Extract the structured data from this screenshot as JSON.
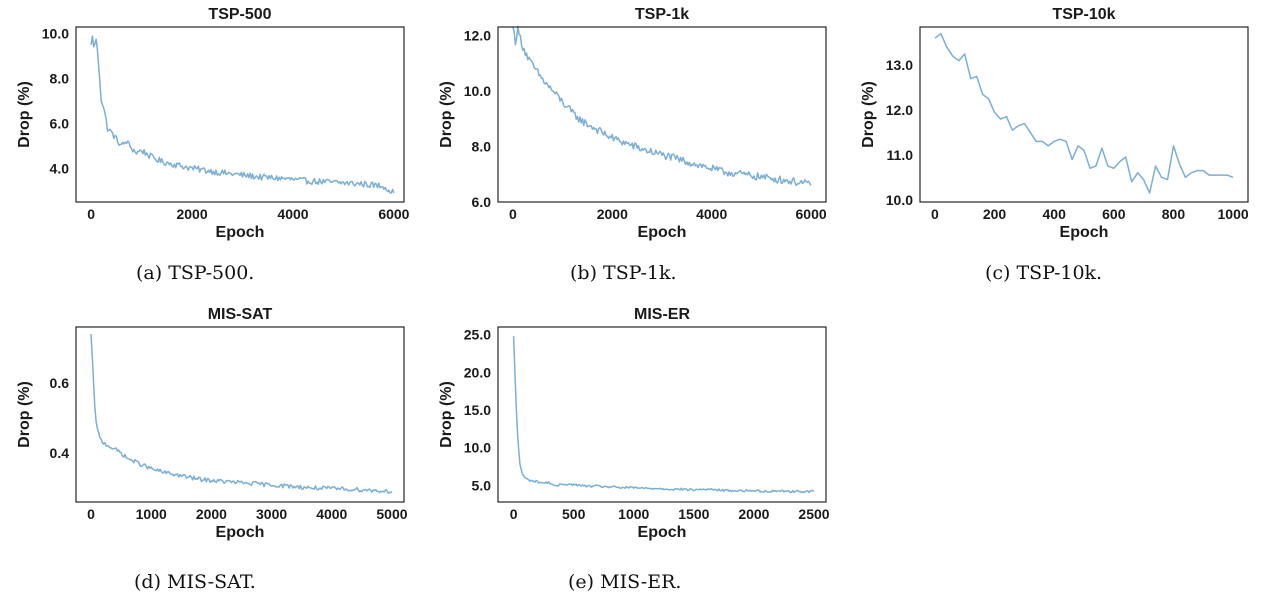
{
  "chart_data": [
    {
      "type": "line",
      "title": "TSP-500",
      "xlabel": "Epoch",
      "ylabel": "Drop (%)",
      "caption": "(a) TSP-500.",
      "xlim": [
        -300,
        6200
      ],
      "ylim": [
        2.5,
        10.3
      ],
      "xticks": [
        0,
        2000,
        4000,
        6000
      ],
      "xtick_labels": [
        "0",
        "2000",
        "4000",
        "6000"
      ],
      "yticks": [
        4.0,
        6.0,
        8.0,
        10.0
      ],
      "ytick_labels": [
        "4.0",
        "6.0",
        "8.0",
        "10.0"
      ],
      "color": "#7bafd4",
      "grid": false,
      "series": [
        {
          "x": [
            0,
            30,
            60,
            100,
            150,
            200,
            260,
            320,
            400,
            500,
            600,
            700,
            800,
            900,
            1000,
            1200,
            1400,
            1600,
            1800,
            2000,
            2300,
            2600,
            3000,
            3400,
            3800,
            4200,
            4600,
            5000,
            5400,
            5800,
            6000
          ],
          "y": [
            9.5,
            9.9,
            9.3,
            9.8,
            8.6,
            7.1,
            6.6,
            5.8,
            5.6,
            5.3,
            5.0,
            5.2,
            4.9,
            4.7,
            4.8,
            4.5,
            4.3,
            4.2,
            4.1,
            4.0,
            3.9,
            3.8,
            3.7,
            3.6,
            3.55,
            3.45,
            3.4,
            3.35,
            3.3,
            3.2,
            2.9
          ]
        }
      ]
    },
    {
      "type": "line",
      "title": "TSP-1k",
      "xlabel": "Epoch",
      "ylabel": "Drop (%)",
      "caption": "(b) TSP-1k.",
      "xlim": [
        -300,
        6300
      ],
      "ylim": [
        6.0,
        12.3
      ],
      "xticks": [
        0,
        2000,
        4000,
        6000
      ],
      "xtick_labels": [
        "0",
        "2000",
        "4000",
        "6000"
      ],
      "yticks": [
        6.0,
        8.0,
        10.0,
        12.0
      ],
      "ytick_labels": [
        "6.0",
        "8.0",
        "10.0",
        "12.0"
      ],
      "color": "#7bafd4",
      "grid": false,
      "series": [
        {
          "x": [
            0,
            50,
            100,
            200,
            300,
            400,
            600,
            800,
            1000,
            1200,
            1400,
            1600,
            1800,
            2000,
            2300,
            2600,
            3000,
            3400,
            3800,
            4200,
            4600,
            5000,
            5400,
            5800,
            6000
          ],
          "y": [
            12.3,
            11.8,
            12.2,
            11.6,
            11.2,
            10.9,
            10.4,
            10.0,
            9.6,
            9.2,
            8.9,
            8.7,
            8.5,
            8.3,
            8.1,
            7.9,
            7.7,
            7.5,
            7.3,
            7.1,
            7.0,
            6.9,
            6.8,
            6.7,
            6.6
          ]
        }
      ]
    },
    {
      "type": "line",
      "title": "TSP-10k",
      "xlabel": "Epoch",
      "ylabel": "Drop (%)",
      "caption": "(c) TSP-10k.",
      "xlim": [
        -50,
        1050
      ],
      "ylim": [
        9.95,
        13.85
      ],
      "xticks": [
        0,
        200,
        400,
        600,
        800,
        1000
      ],
      "xtick_labels": [
        "0",
        "200",
        "400",
        "600",
        "800",
        "1000"
      ],
      "yticks": [
        10.0,
        11.0,
        12.0,
        13.0
      ],
      "ytick_labels": [
        "10.0",
        "11.0",
        "12.0",
        "13.0"
      ],
      "color": "#7bafd4",
      "grid": false,
      "series": [
        {
          "x": [
            0,
            20,
            40,
            60,
            80,
            100,
            120,
            140,
            160,
            180,
            200,
            220,
            240,
            260,
            280,
            300,
            320,
            340,
            360,
            380,
            400,
            420,
            440,
            460,
            480,
            500,
            520,
            540,
            560,
            580,
            600,
            620,
            640,
            660,
            680,
            700,
            720,
            740,
            760,
            780,
            800,
            820,
            840,
            860,
            880,
            900,
            920,
            940,
            960,
            980,
            1000
          ],
          "y": [
            13.6,
            13.7,
            13.4,
            13.2,
            13.1,
            13.25,
            12.7,
            12.75,
            12.35,
            12.25,
            11.95,
            11.8,
            11.85,
            11.55,
            11.65,
            11.7,
            11.5,
            11.3,
            11.3,
            11.2,
            11.3,
            11.35,
            11.3,
            10.9,
            11.2,
            11.1,
            10.7,
            10.75,
            11.15,
            10.75,
            10.7,
            10.85,
            10.95,
            10.4,
            10.6,
            10.45,
            10.15,
            10.75,
            10.5,
            10.45,
            11.2,
            10.8,
            10.5,
            10.6,
            10.65,
            10.65,
            10.55,
            10.55,
            10.55,
            10.55,
            10.5
          ]
        }
      ]
    },
    {
      "type": "line",
      "title": "MIS-SAT",
      "xlabel": "Epoch",
      "ylabel": "Drop (%)",
      "caption": "(d) MIS-SAT.",
      "xlim": [
        -250,
        5200
      ],
      "ylim": [
        0.26,
        0.76
      ],
      "xticks": [
        0,
        1000,
        2000,
        3000,
        4000,
        5000
      ],
      "xtick_labels": [
        "0",
        "1000",
        "2000",
        "3000",
        "4000",
        "5000"
      ],
      "yticks": [
        0.4,
        0.6
      ],
      "ytick_labels": [
        "0.4",
        "0.6"
      ],
      "color": "#7bafd4",
      "grid": false,
      "series": [
        {
          "x": [
            0,
            30,
            60,
            100,
            150,
            200,
            300,
            400,
            500,
            600,
            800,
            1000,
            1200,
            1500,
            1800,
            2100,
            2500,
            2900,
            3300,
            3700,
            4100,
            4500,
            5000
          ],
          "y": [
            0.74,
            0.64,
            0.53,
            0.47,
            0.44,
            0.43,
            0.42,
            0.41,
            0.4,
            0.385,
            0.37,
            0.355,
            0.345,
            0.335,
            0.325,
            0.32,
            0.315,
            0.31,
            0.305,
            0.3,
            0.298,
            0.295,
            0.29
          ]
        }
      ]
    },
    {
      "type": "line",
      "title": "MIS-ER",
      "xlabel": "Epoch",
      "ylabel": "Drop (%)",
      "caption": "(e) MIS-ER.",
      "xlim": [
        -130,
        2600
      ],
      "ylim": [
        2.8,
        26.0
      ],
      "xticks": [
        0,
        500,
        1000,
        1500,
        2000,
        2500
      ],
      "xtick_labels": [
        "0",
        "500",
        "1000",
        "1500",
        "2000",
        "2500"
      ],
      "yticks": [
        5.0,
        10.0,
        15.0,
        20.0,
        25.0
      ],
      "ytick_labels": [
        "5.0",
        "10.0",
        "15.0",
        "20.0",
        "25.0"
      ],
      "color": "#7bafd4",
      "grid": false,
      "series": [
        {
          "x": [
            0,
            15,
            30,
            50,
            75,
            100,
            150,
            200,
            250,
            300,
            350,
            400,
            500,
            600,
            700,
            800,
            900,
            1000,
            1100,
            1200,
            1300,
            1400,
            1500,
            1600,
            1700,
            1800,
            1900,
            2000,
            2100,
            2200,
            2300,
            2400,
            2500
          ],
          "y": [
            24.8,
            18.0,
            12.5,
            8.0,
            6.4,
            5.9,
            5.6,
            5.5,
            5.3,
            5.4,
            4.8,
            5.2,
            5.1,
            4.9,
            4.9,
            4.8,
            4.7,
            4.7,
            4.6,
            4.6,
            4.5,
            4.5,
            4.4,
            4.5,
            4.4,
            4.3,
            4.3,
            4.3,
            4.2,
            4.3,
            4.2,
            4.2,
            4.2
          ]
        }
      ]
    }
  ]
}
